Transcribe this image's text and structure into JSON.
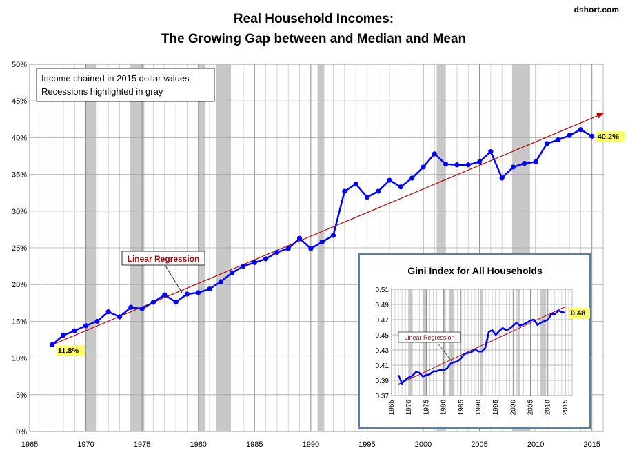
{
  "header": {
    "title_line1": "Real Household Incomes:",
    "title_line2": "The Growing Gap between and Median and Mean",
    "source": "dshort.com"
  },
  "notes": {
    "line1": "Income chained in 2015 dollar values",
    "line2": "Recessions highlighted in gray"
  },
  "colors": {
    "series": "#0000ff",
    "regression": "#c00000",
    "recession": "#c8c8c8",
    "label_bg": "#ffff66",
    "inset_border": "#4f81bd"
  },
  "chart_data": [
    {
      "type": "line",
      "title": "Real Household Incomes: The Growing Gap between and Median and Mean",
      "xlabel": "",
      "ylabel": "",
      "xlim": [
        1965,
        2016
      ],
      "ylim": [
        0,
        50
      ],
      "x_ticks": [
        "1965",
        "1970",
        "1975",
        "1980",
        "1985",
        "1990",
        "1995",
        "2000",
        "2005",
        "2010",
        "2015"
      ],
      "y_ticks": [
        "0%",
        "5%",
        "10%",
        "15%",
        "20%",
        "25%",
        "30%",
        "35%",
        "40%",
        "45%",
        "50%"
      ],
      "grid": true,
      "recessions": [
        [
          1969.9,
          1970.9
        ],
        [
          1973.9,
          1975.2
        ],
        [
          1980.0,
          1980.6
        ],
        [
          1981.6,
          1982.9
        ],
        [
          1990.6,
          1991.2
        ],
        [
          2001.2,
          2001.9
        ],
        [
          2007.9,
          2009.5
        ]
      ],
      "series": [
        {
          "x": [
            1967,
            1968,
            1969,
            1970,
            1971,
            1972,
            1973,
            1974,
            1975,
            1976,
            1977,
            1978,
            1979,
            1980,
            1981,
            1982,
            1983,
            1984,
            1985,
            1986,
            1987,
            1988,
            1989,
            1990,
            1991,
            1992,
            1993,
            1994,
            1995,
            1996,
            1997,
            1998,
            1999,
            2000,
            2001,
            2002,
            2003,
            2004,
            2005,
            2006,
            2007,
            2008,
            2009,
            2010,
            2011,
            2012,
            2013,
            2014,
            2015
          ],
          "values": [
            11.8,
            13.1,
            13.7,
            14.4,
            15.0,
            16.3,
            15.6,
            16.9,
            16.7,
            17.6,
            18.6,
            17.6,
            18.7,
            18.9,
            19.4,
            20.4,
            21.6,
            22.5,
            23.0,
            23.5,
            24.4,
            24.9,
            26.3,
            24.9,
            25.8,
            26.7,
            32.7,
            33.7,
            31.9,
            32.7,
            34.2,
            33.3,
            34.5,
            36.0,
            37.8,
            36.4,
            36.3,
            36.3,
            36.7,
            38.1,
            34.5,
            36.0,
            36.5,
            36.7,
            39.2,
            39.7,
            40.3,
            41.1,
            40.2
          ]
        }
      ],
      "regression": {
        "label": "Linear Regression",
        "start": [
          1967,
          11.8
        ],
        "end": [
          2016,
          43.3
        ]
      },
      "annotations": [
        {
          "text": "11.8%",
          "x": 1967,
          "y": 11.8
        },
        {
          "text": "40.2%",
          "x": 2015,
          "y": 40.2
        }
      ]
    },
    {
      "type": "line",
      "title": "Gini Index for All Households",
      "xlim": [
        1965,
        2017
      ],
      "ylim": [
        0.37,
        0.51
      ],
      "x_ticks": [
        "1965",
        "1970",
        "1975",
        "1980",
        "1985",
        "1990",
        "1995",
        "2000",
        "2005",
        "2010",
        "2015"
      ],
      "y_ticks": [
        "0.37",
        "0.39",
        "0.41",
        "0.43",
        "0.45",
        "0.47",
        "0.49",
        "0.51"
      ],
      "grid": true,
      "recessions": [
        [
          1969.9,
          1970.9
        ],
        [
          1973.9,
          1975.2
        ],
        [
          1980.0,
          1980.6
        ],
        [
          1981.6,
          1982.9
        ],
        [
          1990.6,
          1991.2
        ],
        [
          2001.2,
          2001.9
        ],
        [
          2007.9,
          2009.5
        ]
      ],
      "series": [
        {
          "x": [
            1967,
            1968,
            1969,
            1970,
            1971,
            1972,
            1973,
            1974,
            1975,
            1976,
            1977,
            1978,
            1979,
            1980,
            1981,
            1982,
            1983,
            1984,
            1985,
            1986,
            1987,
            1988,
            1989,
            1990,
            1991,
            1992,
            1993,
            1994,
            1995,
            1996,
            1997,
            1998,
            1999,
            2000,
            2001,
            2002,
            2003,
            2004,
            2005,
            2006,
            2007,
            2008,
            2009,
            2010,
            2011,
            2012,
            2013,
            2014,
            2015
          ],
          "values": [
            0.397,
            0.386,
            0.391,
            0.394,
            0.396,
            0.401,
            0.4,
            0.395,
            0.397,
            0.398,
            0.402,
            0.402,
            0.404,
            0.403,
            0.406,
            0.412,
            0.414,
            0.415,
            0.419,
            0.425,
            0.426,
            0.427,
            0.431,
            0.428,
            0.428,
            0.433,
            0.454,
            0.456,
            0.45,
            0.455,
            0.459,
            0.456,
            0.458,
            0.462,
            0.466,
            0.462,
            0.464,
            0.466,
            0.469,
            0.47,
            0.463,
            0.466,
            0.468,
            0.47,
            0.477,
            0.477,
            0.482,
            0.48,
            0.479
          ]
        }
      ],
      "regression": {
        "label": "Linear Regression",
        "start": [
          1967,
          0.385
        ],
        "end": [
          2015,
          0.487
        ]
      },
      "annotations": [
        {
          "text": "0.48",
          "x": 2015,
          "y": 0.479
        }
      ]
    }
  ]
}
